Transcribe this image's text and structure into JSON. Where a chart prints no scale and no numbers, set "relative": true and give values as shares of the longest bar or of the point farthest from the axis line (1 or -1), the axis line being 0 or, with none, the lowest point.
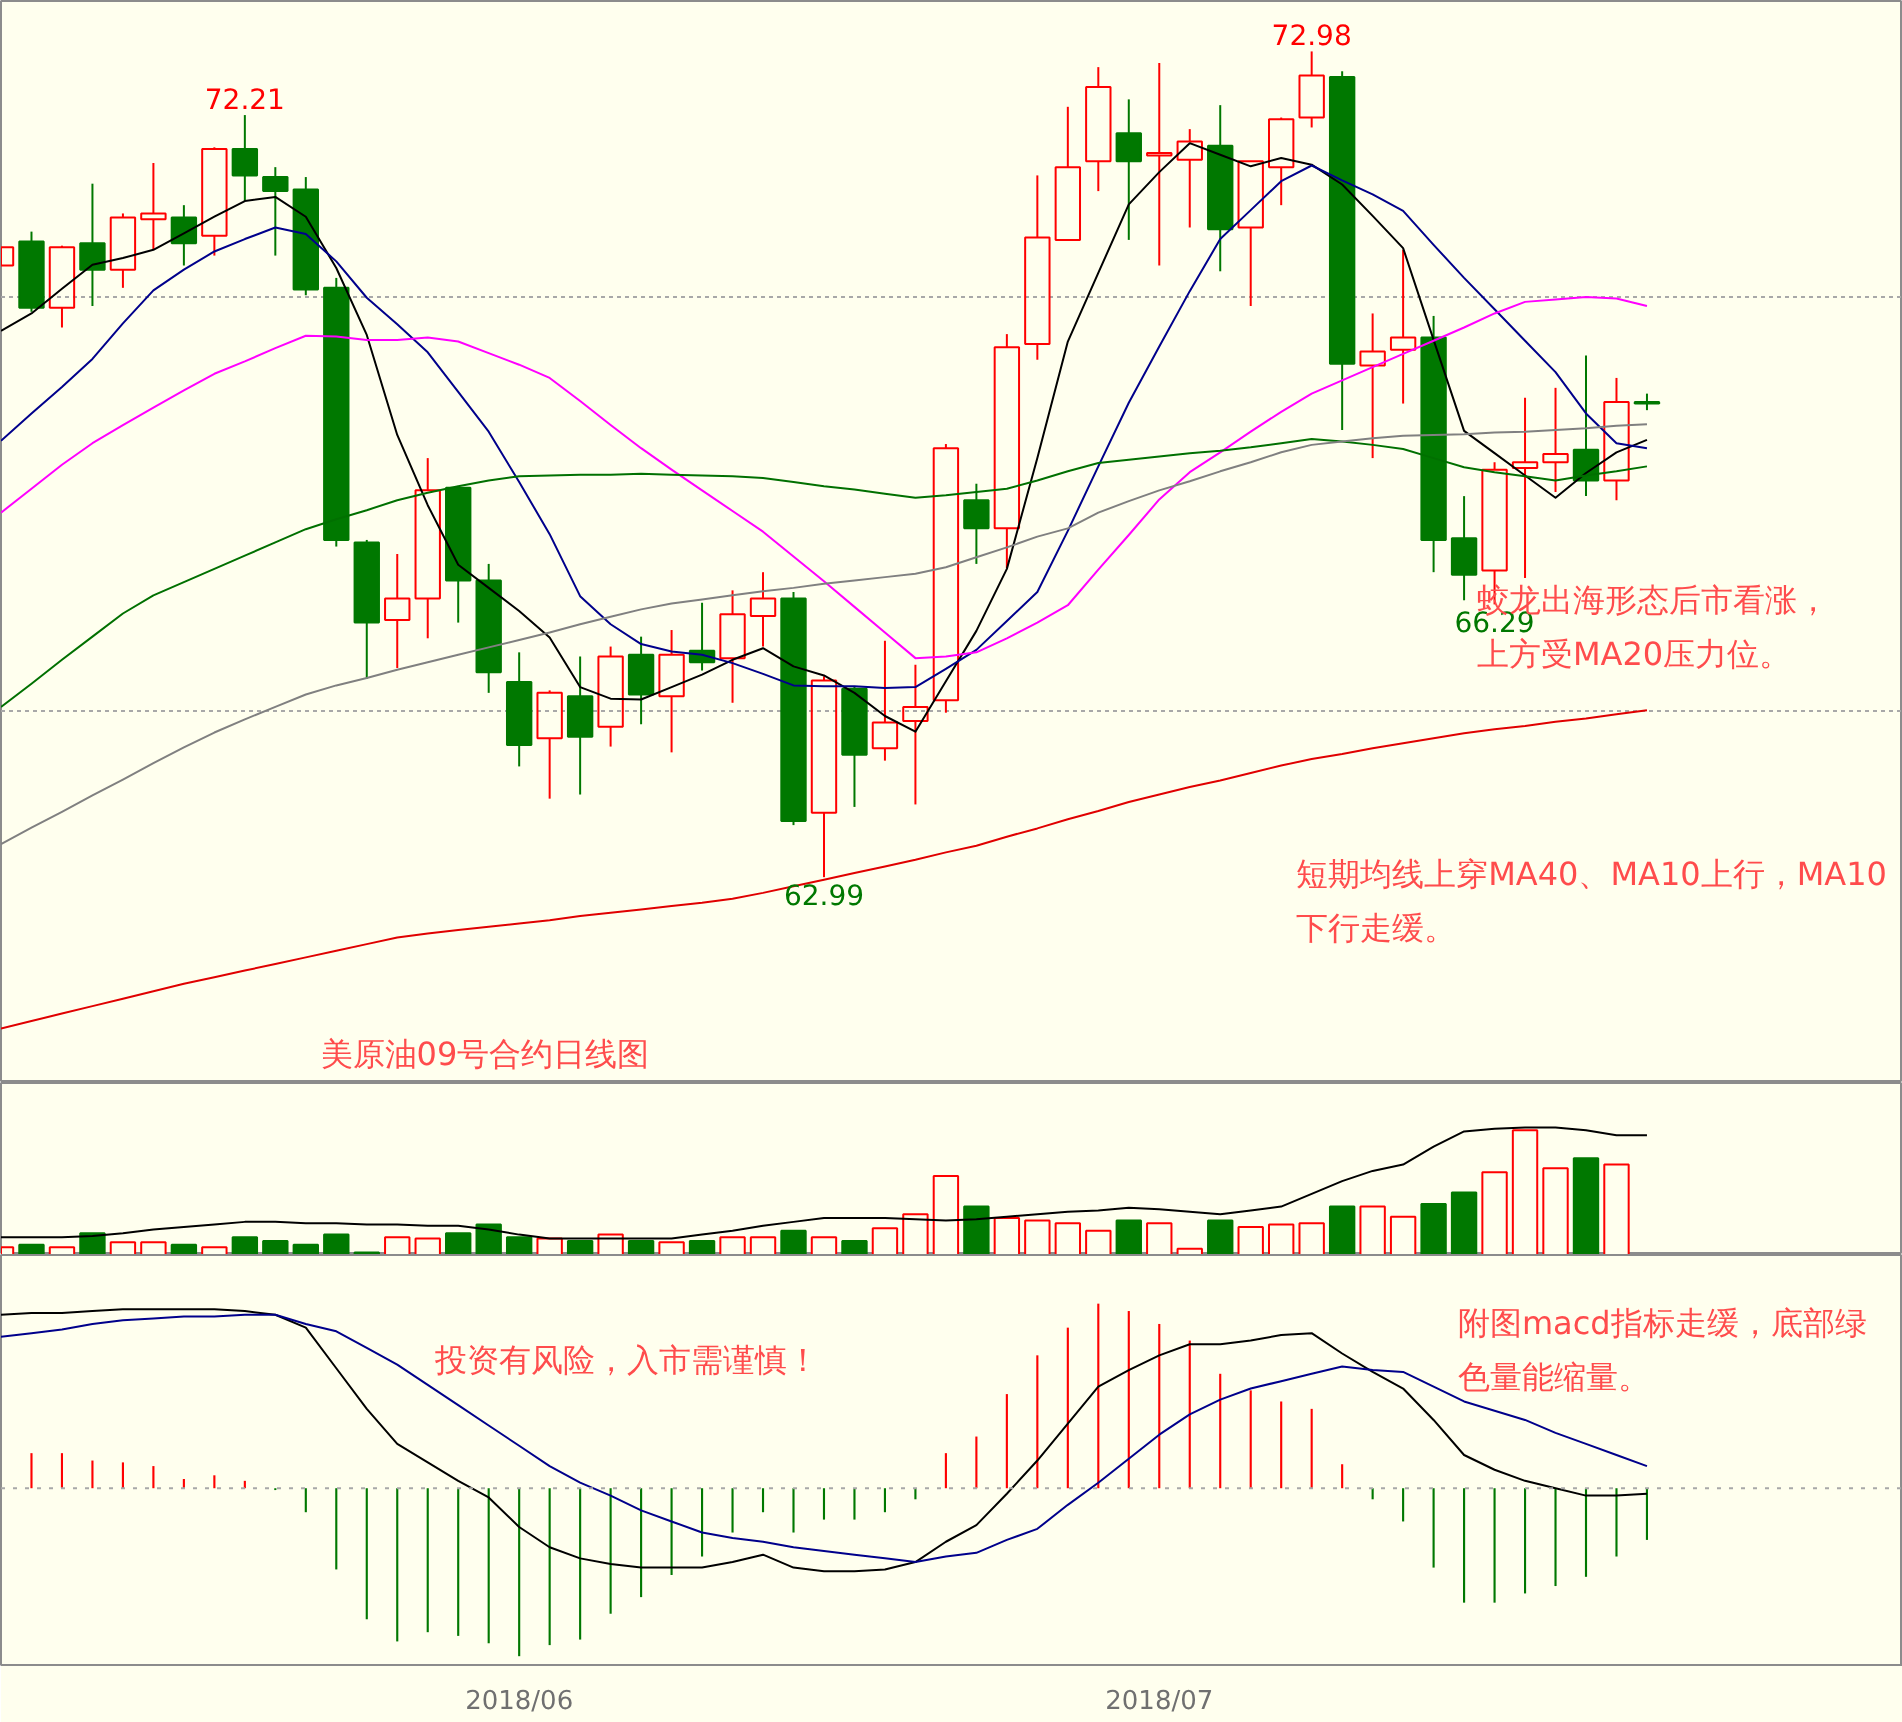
{
  "chart_data": [
    {
      "type": "candlestick",
      "title": "美原油09号合约日线图",
      "ylim": [
        60.5,
        73.59
      ],
      "yticks": [
        {
          "value": 70,
          "label": null
        },
        {
          "value": 65,
          "label": null
        }
      ],
      "grid": "y",
      "tick_labels": false,
      "categories": [
        null,
        null,
        null,
        null,
        null,
        null,
        null,
        null,
        null,
        null,
        null,
        null,
        null,
        null,
        null,
        null,
        null,
        "2018/06",
        null,
        null,
        null,
        null,
        null,
        null,
        null,
        null,
        null,
        null,
        null,
        null,
        null,
        null,
        null,
        null,
        null,
        null,
        null,
        null,
        "2018/07",
        null,
        null,
        null,
        null,
        null,
        null,
        null,
        null,
        null,
        null,
        null,
        null,
        null,
        null,
        null,
        null
      ],
      "ohlc": [
        [
          70.39,
          70.61,
          70.39,
          70.61
        ],
        [
          70.68,
          70.8,
          69.83,
          69.88
        ],
        [
          69.88,
          70.63,
          69.64,
          70.61
        ],
        [
          70.66,
          71.38,
          69.9,
          70.34
        ],
        [
          70.34,
          71.02,
          70.12,
          70.97
        ],
        [
          70.95,
          71.63,
          70.58,
          71.02
        ],
        [
          70.97,
          71.12,
          70.39,
          70.66
        ],
        [
          70.75,
          71.82,
          70.51,
          71.8
        ],
        [
          71.8,
          72.21,
          71.17,
          71.48
        ],
        [
          71.46,
          71.58,
          70.51,
          71.29
        ],
        [
          71.31,
          71.46,
          70.03,
          70.1
        ],
        [
          70.12,
          70.24,
          66.99,
          67.07
        ],
        [
          67.04,
          67.07,
          65.39,
          66.07
        ],
        [
          66.1,
          66.9,
          65.52,
          66.36
        ],
        [
          66.36,
          68.06,
          65.88,
          67.67
        ],
        [
          67.7,
          67.72,
          66.07,
          66.58
        ],
        [
          66.58,
          66.78,
          65.22,
          65.47
        ],
        [
          65.35,
          65.71,
          64.33,
          64.59
        ],
        [
          64.67,
          65.25,
          63.94,
          65.22
        ],
        [
          65.18,
          65.66,
          63.99,
          64.69
        ],
        [
          64.81,
          65.78,
          64.57,
          65.66
        ],
        [
          65.68,
          65.9,
          64.84,
          65.2
        ],
        [
          65.18,
          65.98,
          64.5,
          65.68
        ],
        [
          65.73,
          66.31,
          65.49,
          65.59
        ],
        [
          65.64,
          66.46,
          65.1,
          66.17
        ],
        [
          66.15,
          66.68,
          65.78,
          66.36
        ],
        [
          66.36,
          66.44,
          63.62,
          63.67
        ],
        [
          63.77,
          65.42,
          62.99,
          65.37
        ],
        [
          65.27,
          65.3,
          63.84,
          64.47
        ],
        [
          64.55,
          65.85,
          64.4,
          64.86
        ],
        [
          64.88,
          65.56,
          63.87,
          65.05
        ],
        [
          65.13,
          68.23,
          64.98,
          68.18
        ],
        [
          67.55,
          67.75,
          66.78,
          67.21
        ],
        [
          67.21,
          69.56,
          66.73,
          69.4
        ],
        [
          69.44,
          71.48,
          69.25,
          70.73
        ],
        [
          70.7,
          72.31,
          70.7,
          71.58
        ],
        [
          71.65,
          72.79,
          71.29,
          72.55
        ],
        [
          71.99,
          72.4,
          70.7,
          71.65
        ],
        [
          71.72,
          72.84,
          70.39,
          71.75
        ],
        [
          71.67,
          72.04,
          70.85,
          71.89
        ],
        [
          71.84,
          72.33,
          70.32,
          70.83
        ],
        [
          70.85,
          71.65,
          69.9,
          71.65
        ],
        [
          71.58,
          72.18,
          71.12,
          72.16
        ],
        [
          72.18,
          72.98,
          72.06,
          72.69
        ],
        [
          72.67,
          72.74,
          68.4,
          69.2
        ],
        [
          69.18,
          69.81,
          68.06,
          69.35
        ],
        [
          69.37,
          70.58,
          68.72,
          69.52
        ],
        [
          69.52,
          69.78,
          66.68,
          67.07
        ],
        [
          67.09,
          67.6,
          66.34,
          66.65
        ],
        [
          66.7,
          68.01,
          66.29,
          67.92
        ],
        [
          67.94,
          68.79,
          66.61,
          68.01
        ],
        [
          68.01,
          68.91,
          67.65,
          68.11
        ],
        [
          68.16,
          69.3,
          67.6,
          67.79
        ],
        [
          67.79,
          69.03,
          67.55,
          68.74
        ],
        [
          68.74,
          68.84,
          68.64,
          68.72
        ]
      ],
      "colors": [
        "#ff0000",
        "#007800",
        "#ff0000",
        "#007800",
        "#ff0000",
        "#ff0000",
        "#007800",
        "#ff0000",
        "#007800",
        "#007800",
        "#007800",
        "#007800",
        "#007800",
        "#ff0000",
        "#ff0000",
        "#007800",
        "#007800",
        "#007800",
        "#ff0000",
        "#007800",
        "#ff0000",
        "#007800",
        "#ff0000",
        "#007800",
        "#ff0000",
        "#ff0000",
        "#007800",
        "#ff0000",
        "#007800",
        "#ff0000",
        "#ff0000",
        "#ff0000",
        "#007800",
        "#ff0000",
        "#ff0000",
        "#ff0000",
        "#ff0000",
        "#007800",
        "#ff0000",
        "#ff0000",
        "#007800",
        "#ff0000",
        "#ff0000",
        "#ff0000",
        "#007800",
        "#ff0000",
        "#ff0000",
        "#007800",
        "#007800",
        "#ff0000",
        "#ff0000",
        "#ff0000",
        "#007800",
        "#ff0000",
        "#007800"
      ],
      "series": [
        {
          "type": "line",
          "color": "#000000",
          "values": [
            69.6,
            69.81,
            70.11,
            70.4,
            70.48,
            70.58,
            70.78,
            70.98,
            71.17,
            71.22,
            70.98,
            70.36,
            69.55,
            68.34,
            67.49,
            66.77,
            66.49,
            66.21,
            65.89,
            65.29,
            65.15,
            65.14,
            65.29,
            65.44,
            65.62,
            65.76,
            65.54,
            65.43,
            65.22,
            64.94,
            64.75,
            65.36,
            65.97,
            66.72,
            68.06,
            69.47,
            70.3,
            71.13,
            71.52,
            71.87,
            71.73,
            71.59,
            71.69,
            71.61,
            71.37,
            70.99,
            70.6,
            69.49,
            68.39,
            68.12,
            67.85,
            67.58,
            67.88,
            68.13,
            68.28
          ]
        },
        {
          "type": "line",
          "color": "#00008b",
          "values": [
            68.27,
            68.6,
            68.92,
            69.26,
            69.69,
            70.09,
            70.34,
            70.56,
            70.71,
            70.85,
            70.77,
            70.44,
            70.0,
            69.68,
            69.34,
            68.86,
            68.38,
            67.77,
            67.14,
            66.39,
            66.05,
            65.81,
            65.72,
            65.68,
            65.58,
            65.45,
            65.31,
            65.3,
            65.3,
            65.28,
            65.29,
            65.51,
            65.74,
            66.09,
            66.44,
            67.18,
            67.96,
            68.73,
            69.41,
            70.08,
            70.71,
            71.06,
            71.41,
            71.6,
            71.42,
            71.25,
            71.05,
            70.64,
            70.24,
            69.86,
            69.48,
            69.1,
            68.6,
            68.24,
            68.18
          ]
        },
        {
          "type": "line",
          "color": "#ff00ff",
          "values": [
            67.4,
            67.69,
            67.98,
            68.24,
            68.46,
            68.67,
            68.88,
            69.08,
            69.23,
            69.39,
            69.54,
            69.53,
            69.49,
            69.49,
            69.52,
            69.47,
            69.33,
            69.19,
            69.03,
            68.75,
            68.46,
            68.18,
            67.92,
            67.67,
            67.42,
            67.17,
            66.87,
            66.57,
            66.26,
            65.95,
            65.64,
            65.66,
            65.71,
            65.88,
            66.07,
            66.28,
            66.71,
            67.13,
            67.56,
            67.89,
            68.13,
            68.38,
            68.62,
            68.84,
            69.0,
            69.16,
            69.32,
            69.48,
            69.64,
            69.81,
            69.95,
            69.98,
            70.01,
            69.99,
            69.9
          ]
        },
        {
          "type": "line",
          "color": "#007000",
          "values": [
            65.05,
            65.33,
            65.62,
            65.9,
            66.18,
            66.4,
            66.56,
            66.72,
            66.88,
            67.04,
            67.2,
            67.32,
            67.43,
            67.55,
            67.64,
            67.72,
            67.79,
            67.84,
            67.85,
            67.86,
            67.86,
            67.87,
            67.86,
            67.85,
            67.84,
            67.82,
            67.77,
            67.72,
            67.68,
            67.63,
            67.58,
            67.61,
            67.65,
            67.69,
            67.79,
            67.9,
            68.0,
            68.04,
            68.08,
            68.12,
            68.15,
            68.19,
            68.24,
            68.29,
            68.26,
            68.22,
            68.17,
            68.06,
            67.95,
            67.89,
            67.84,
            67.79,
            67.85,
            67.9,
            67.96
          ]
        },
        {
          "type": "line",
          "color": "#808080",
          "values": [
            63.39,
            63.59,
            63.78,
            63.98,
            64.17,
            64.37,
            64.56,
            64.74,
            64.9,
            65.05,
            65.2,
            65.31,
            65.4,
            65.5,
            65.59,
            65.68,
            65.77,
            65.86,
            65.95,
            66.05,
            66.14,
            66.23,
            66.3,
            66.35,
            66.4,
            66.45,
            66.49,
            66.54,
            66.58,
            66.62,
            66.66,
            66.74,
            66.86,
            66.98,
            67.11,
            67.21,
            67.4,
            67.54,
            67.67,
            67.78,
            67.9,
            68.01,
            68.13,
            68.22,
            68.26,
            68.3,
            68.33,
            68.34,
            68.35,
            68.37,
            68.38,
            68.4,
            68.42,
            68.45,
            68.47
          ]
        },
        {
          "type": "line",
          "color": "#e00000",
          "values": [
            61.16,
            61.25,
            61.34,
            61.43,
            61.52,
            61.61,
            61.7,
            61.78,
            61.86,
            61.94,
            62.02,
            62.1,
            62.18,
            62.26,
            62.31,
            62.35,
            62.39,
            62.43,
            62.47,
            62.52,
            62.56,
            62.6,
            62.64,
            62.68,
            62.73,
            62.8,
            62.88,
            62.96,
            63.04,
            63.12,
            63.2,
            63.29,
            63.37,
            63.48,
            63.58,
            63.69,
            63.79,
            63.9,
            63.99,
            64.08,
            64.16,
            64.25,
            64.34,
            64.42,
            64.48,
            64.55,
            64.61,
            64.67,
            64.73,
            64.78,
            64.82,
            64.87,
            64.91,
            64.96,
            65.01
          ]
        }
      ],
      "annotations": [
        {
          "text": "72.21",
          "y": 72.21
        },
        {
          "text": "72.98",
          "y": 72.98
        },
        {
          "text": "62.99",
          "y": 62.99
        },
        {
          "text": "66.29",
          "y": 66.29
        },
        "蛟龙出海形态后市看涨，上方受MA20压力位。",
        "短期均线上穿MA40、MA10上行，MA10下行走缓。"
      ]
    },
    {
      "type": "bar",
      "relative": true,
      "tick_labels": false,
      "categories": [
        null,
        null,
        null,
        null,
        null,
        null,
        null,
        null,
        null,
        null,
        null,
        null,
        null,
        null,
        null,
        null,
        null,
        "2018/06",
        null,
        null,
        null,
        null,
        null,
        null,
        null,
        null,
        null,
        null,
        null,
        null,
        null,
        null,
        null,
        null,
        null,
        null,
        null,
        null,
        "2018/07",
        null,
        null,
        null,
        null,
        null,
        null,
        null,
        null,
        null,
        null,
        null,
        null,
        null,
        null,
        null,
        null
      ],
      "series": [
        {
          "type": "bar",
          "values": [
            0.06,
            0.08,
            0.06,
            0.17,
            0.1,
            0.1,
            0.08,
            0.06,
            0.14,
            0.11,
            0.08,
            0.16,
            0.02,
            0.14,
            0.13,
            0.17,
            0.24,
            0.14,
            0.13,
            0.11,
            0.16,
            0.11,
            0.1,
            0.11,
            0.14,
            0.14,
            0.19,
            0.14,
            0.11,
            0.21,
            0.32,
            0.62,
            0.38,
            0.29,
            0.27,
            0.25,
            0.19,
            0.27,
            0.25,
            0.05,
            0.27,
            0.22,
            0.24,
            0.25,
            0.38,
            0.38,
            0.3,
            0.4,
            0.49,
            0.65,
            0.98,
            0.68,
            0.76,
            0.71,
            null
          ],
          "colors": [
            "#ff0000",
            "#007800",
            "#ff0000",
            "#007800",
            "#ff0000",
            "#ff0000",
            "#007800",
            "#ff0000",
            "#007800",
            "#007800",
            "#007800",
            "#007800",
            "#007800",
            "#ff0000",
            "#ff0000",
            "#007800",
            "#007800",
            "#007800",
            "#ff0000",
            "#007800",
            "#ff0000",
            "#007800",
            "#ff0000",
            "#007800",
            "#ff0000",
            "#ff0000",
            "#007800",
            "#ff0000",
            "#007800",
            "#ff0000",
            "#ff0000",
            "#ff0000",
            "#007800",
            "#ff0000",
            "#ff0000",
            "#ff0000",
            "#ff0000",
            "#007800",
            "#ff0000",
            "#ff0000",
            "#007800",
            "#ff0000",
            "#ff0000",
            "#ff0000",
            "#007800",
            "#ff0000",
            "#ff0000",
            "#007800",
            "#007800",
            "#ff0000",
            "#ff0000",
            "#ff0000",
            "#007800",
            "#ff0000",
            "#007800"
          ]
        },
        {
          "type": "line",
          "color": "#000000",
          "values": [
            0.14,
            0.14,
            0.14,
            0.15,
            0.17,
            0.2,
            0.22,
            0.24,
            0.26,
            0.26,
            0.25,
            0.25,
            0.24,
            0.24,
            0.23,
            0.23,
            0.2,
            0.16,
            0.13,
            0.13,
            0.13,
            0.13,
            0.13,
            0.16,
            0.19,
            0.23,
            0.26,
            0.29,
            0.29,
            0.29,
            0.28,
            0.27,
            0.28,
            0.3,
            0.32,
            0.34,
            0.35,
            0.37,
            0.36,
            0.34,
            0.32,
            0.35,
            0.38,
            0.48,
            0.58,
            0.66,
            0.71,
            0.85,
            0.97,
            0.99,
            1,
            1,
            0.98,
            0.94,
            0.94
          ]
        }
      ]
    },
    {
      "type": "bar",
      "relative": true,
      "tick_labels": "x",
      "ref_lines": [
        {
          "axis": "y",
          "value": 0,
          "color": "#a8a8a8",
          "line_style": "dotted"
        }
      ],
      "categories": [
        null,
        null,
        null,
        null,
        null,
        null,
        null,
        null,
        null,
        null,
        null,
        null,
        null,
        null,
        null,
        null,
        null,
        "2018/06",
        null,
        null,
        null,
        null,
        null,
        null,
        null,
        null,
        null,
        null,
        null,
        null,
        null,
        null,
        null,
        null,
        null,
        null,
        null,
        null,
        "2018/07",
        null,
        null,
        null,
        null,
        null,
        null,
        null,
        null,
        null,
        null,
        null,
        null,
        null,
        null,
        null,
        null
      ],
      "series": [
        {
          "type": "bar",
          "values": [
            null,
            0.19,
            0.19,
            0.15,
            0.14,
            0.12,
            0.05,
            0.07,
            0.04,
            -0.01,
            -0.13,
            -0.44,
            -0.71,
            -0.83,
            -0.78,
            -0.8,
            -0.84,
            -0.91,
            -0.85,
            -0.82,
            -0.68,
            -0.59,
            -0.47,
            -0.37,
            -0.24,
            -0.13,
            -0.24,
            -0.17,
            -0.17,
            -0.13,
            -0.06,
            0.19,
            0.28,
            0.51,
            0.72,
            0.87,
            1.0,
            0.96,
            0.89,
            0.8,
            0.62,
            0.53,
            0.47,
            0.43,
            0.13,
            -0.06,
            -0.18,
            -0.43,
            -0.62,
            -0.62,
            -0.57,
            -0.53,
            -0.48,
            -0.37,
            -0.28
          ],
          "colors": [
            "#ff0000",
            "#ff0000",
            "#ff0000",
            "#ff0000",
            "#ff0000",
            "#ff0000",
            "#ff0000",
            "#ff0000",
            "#ff0000",
            "#007800",
            "#007800",
            "#007800",
            "#007800",
            "#007800",
            "#007800",
            "#007800",
            "#007800",
            "#007800",
            "#007800",
            "#007800",
            "#007800",
            "#007800",
            "#007800",
            "#007800",
            "#007800",
            "#007800",
            "#007800",
            "#007800",
            "#007800",
            "#007800",
            "#007800",
            "#ff0000",
            "#ff0000",
            "#ff0000",
            "#ff0000",
            "#ff0000",
            "#ff0000",
            "#ff0000",
            "#ff0000",
            "#ff0000",
            "#ff0000",
            "#ff0000",
            "#ff0000",
            "#ff0000",
            "#ff0000",
            "#007800",
            "#007800",
            "#007800",
            "#007800",
            "#007800",
            "#007800",
            "#007800",
            "#007800",
            "#007800",
            "#007800"
          ]
        },
        {
          "type": "line",
          "color": "#000000",
          "values": [
            0.94,
            0.95,
            0.95,
            0.96,
            0.97,
            0.97,
            0.97,
            0.97,
            0.96,
            0.94,
            0.87,
            0.65,
            0.43,
            0.24,
            0.14,
            0.04,
            -0.05,
            -0.21,
            -0.32,
            -0.38,
            -0.41,
            -0.43,
            -0.43,
            -0.43,
            -0.4,
            -0.36,
            -0.43,
            -0.45,
            -0.45,
            -0.44,
            -0.4,
            -0.29,
            -0.2,
            -0.03,
            0.15,
            0.35,
            0.55,
            0.64,
            0.72,
            0.78,
            0.78,
            0.8,
            0.83,
            0.84,
            0.73,
            0.63,
            0.54,
            0.37,
            0.18,
            0.1,
            0.04,
            0,
            -0.04,
            -0.04,
            -0.03
          ]
        },
        {
          "type": "line",
          "color": "#00008b",
          "values": [
            0.82,
            0.84,
            0.86,
            0.89,
            0.91,
            0.92,
            0.93,
            0.93,
            0.94,
            0.94,
            0.89,
            0.85,
            0.76,
            0.67,
            0.56,
            0.45,
            0.34,
            0.23,
            0.12,
            0.03,
            -0.04,
            -0.12,
            -0.18,
            -0.24,
            -0.27,
            -0.29,
            -0.32,
            -0.34,
            -0.36,
            -0.38,
            -0.4,
            -0.37,
            -0.35,
            -0.28,
            -0.22,
            -0.09,
            0.03,
            0.16,
            0.29,
            0.4,
            0.48,
            0.54,
            0.58,
            0.62,
            0.66,
            0.64,
            0.63,
            0.55,
            0.47,
            0.42,
            0.37,
            0.3,
            0.24,
            0.18,
            0.12
          ]
        }
      ],
      "annotations": [
        "投资有风险，入市需谨慎！",
        "附图macd指标走缓，底部绿色量能缩量。"
      ]
    }
  ]
}
